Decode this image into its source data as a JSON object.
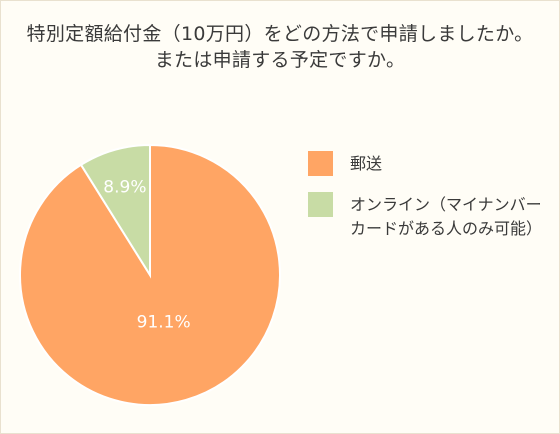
{
  "title_lines": [
    "特別定額給付金（10万円）をどの方法で申請しましたか。",
    "または申請する予定ですか。"
  ],
  "colors": {
    "mail": "#ffa564",
    "online": "#c8dca5",
    "background": "#fffdf6"
  },
  "chart_data": {
    "type": "pie",
    "title": "特別定額給付金（10万円）をどの方法で申請しましたか。または申請する予定ですか。",
    "legend_position": "right",
    "slices": [
      {
        "label": "郵送",
        "value": 91.1,
        "value_label": "91.1%",
        "color": "#ffa564"
      },
      {
        "label": "オンライン（マイナンバーカードがある人のみ可能）",
        "value": 8.9,
        "value_label": "8.9%",
        "color": "#c8dca5"
      }
    ]
  },
  "legend": [
    {
      "label_lines": [
        "郵送"
      ],
      "color": "#ffa564"
    },
    {
      "label_lines": [
        "オンライン（マイナンバー",
        "カードがある人のみ可能）"
      ],
      "color": "#c8dca5"
    }
  ]
}
